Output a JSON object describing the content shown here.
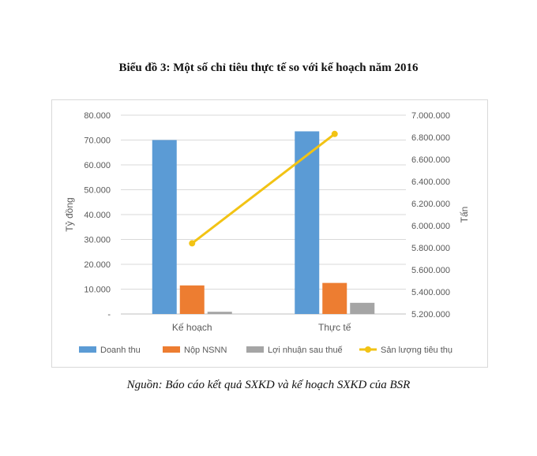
{
  "title": "Biểu đồ 3: Một số chỉ tiêu thực tế so với kế hoạch năm 2016",
  "caption": "Nguồn: Báo cáo kết quả SXKD và kế hoạch SXKD của BSR",
  "chart_data": {
    "type": "bar",
    "categories": [
      "Kế hoạch",
      "Thực tế"
    ],
    "series": [
      {
        "name": "Doanh thu",
        "axis": "left",
        "kind": "bar",
        "color": "#5B9BD5",
        "values": [
          70000,
          73500
        ]
      },
      {
        "name": "Nộp NSNN",
        "axis": "left",
        "kind": "bar",
        "color": "#ED7D31",
        "values": [
          11500,
          12500
        ]
      },
      {
        "name": "Lợi nhuận sau thuế",
        "axis": "left",
        "kind": "bar",
        "color": "#A5A5A5",
        "values": [
          900,
          4500
        ]
      },
      {
        "name": "Sản lượng tiêu thụ",
        "axis": "right",
        "kind": "line",
        "color": "#F2C314",
        "values": [
          5840000,
          6830000
        ]
      }
    ],
    "ylabel": "Tỷ đồng",
    "y2label": "Tấn",
    "ylim": [
      0,
      80000
    ],
    "y2lim": [
      5200000,
      7000000
    ],
    "yticks": [
      "-",
      "10.000",
      "20.000",
      "30.000",
      "40.000",
      "50.000",
      "60.000",
      "70.000",
      "80.000"
    ],
    "y2ticks": [
      "5.200.000",
      "5.400.000",
      "5.600.000",
      "5.800.000",
      "6.000.000",
      "6.200.000",
      "6.400.000",
      "6.600.000",
      "6.800.000",
      "7.000.000"
    ],
    "grid": true,
    "legend": "bottom"
  }
}
